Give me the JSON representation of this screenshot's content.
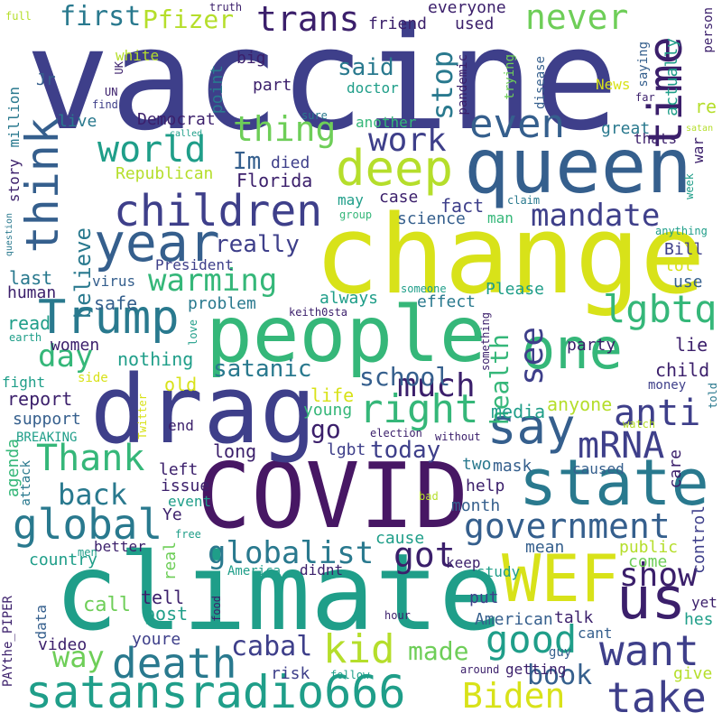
{
  "colors": {
    "background": "#ffffff",
    "purple": "#3b1f6b",
    "dark_purple": "#471764",
    "indigo": "#3e3f8a",
    "blue": "#355f8d",
    "teal": "#29798e",
    "green_teal": "#1f9e89",
    "green": "#35b779",
    "light_green": "#6ece58",
    "lime": "#b5de2b",
    "yellow": "#d8e219"
  },
  "words": [
    {
      "text": "vaccine",
      "color": "indigo"
    },
    {
      "text": "change",
      "color": "yellow"
    },
    {
      "text": "queen",
      "color": "blue"
    },
    {
      "text": "climate",
      "color": "green_teal"
    },
    {
      "text": "COVID",
      "color": "dark_purple"
    },
    {
      "text": "drag",
      "color": "indigo"
    },
    {
      "text": "people",
      "color": "green"
    },
    {
      "text": "satansradio666",
      "color": "green_teal"
    },
    {
      "text": "state",
      "color": "teal"
    },
    {
      "text": "WEF",
      "color": "yellow"
    },
    {
      "text": "us",
      "color": "purple"
    },
    {
      "text": "one",
      "color": "green"
    },
    {
      "text": "year",
      "color": "blue"
    },
    {
      "text": "deep",
      "color": "lime"
    },
    {
      "text": "children",
      "color": "indigo"
    },
    {
      "text": "think",
      "color": "blue"
    },
    {
      "text": "time",
      "color": "purple"
    },
    {
      "text": "Trump",
      "color": "teal"
    },
    {
      "text": "say",
      "color": "blue"
    },
    {
      "text": "want",
      "color": "indigo"
    },
    {
      "text": "take",
      "color": "indigo"
    },
    {
      "text": "death",
      "color": "teal"
    },
    {
      "text": "government",
      "color": "blue"
    },
    {
      "text": "global",
      "color": "teal"
    },
    {
      "text": "even",
      "color": "blue"
    },
    {
      "text": "world",
      "color": "green_teal"
    },
    {
      "text": "Thank",
      "color": "green"
    },
    {
      "text": "right",
      "color": "green"
    },
    {
      "text": "good",
      "color": "green_teal"
    },
    {
      "text": "mRNA",
      "color": "indigo"
    },
    {
      "text": "show",
      "color": "purple"
    },
    {
      "text": "kid",
      "color": "lime"
    },
    {
      "text": "Biden",
      "color": "yellow"
    },
    {
      "text": "anti",
      "color": "indigo"
    },
    {
      "text": "mandate",
      "color": "indigo"
    },
    {
      "text": "lgbtq",
      "color": "green"
    },
    {
      "text": "trans",
      "color": "purple"
    },
    {
      "text": "never",
      "color": "light_green"
    },
    {
      "text": "thing",
      "color": "light_green"
    },
    {
      "text": "warming",
      "color": "green"
    },
    {
      "text": "work",
      "color": "indigo"
    },
    {
      "text": "see",
      "color": "indigo"
    },
    {
      "text": "much",
      "color": "purple"
    },
    {
      "text": "globalist",
      "color": "teal"
    },
    {
      "text": "got",
      "color": "purple"
    },
    {
      "text": "back",
      "color": "teal"
    },
    {
      "text": "day",
      "color": "green"
    },
    {
      "text": "satanic",
      "color": "teal"
    },
    {
      "text": "school",
      "color": "blue"
    },
    {
      "text": "health",
      "color": "green"
    },
    {
      "text": "stop",
      "color": "teal"
    },
    {
      "text": "really",
      "color": "indigo"
    },
    {
      "text": "book",
      "color": "blue"
    },
    {
      "text": "cabal",
      "color": "indigo"
    },
    {
      "text": "way",
      "color": "light_green"
    },
    {
      "text": "made",
      "color": "light_green"
    },
    {
      "text": "today",
      "color": "indigo"
    },
    {
      "text": "first",
      "color": "teal"
    },
    {
      "text": "Pfizer",
      "color": "lime"
    },
    {
      "text": "believe",
      "color": "teal"
    },
    {
      "text": "said",
      "color": "teal"
    },
    {
      "text": "go",
      "color": "purple"
    },
    {
      "text": "Im",
      "color": "blue"
    },
    {
      "text": "Florida",
      "color": "purple"
    },
    {
      "text": "died",
      "color": "indigo"
    },
    {
      "text": "Republican",
      "color": "lime"
    },
    {
      "text": "Democrat",
      "color": "purple"
    },
    {
      "text": "everyone",
      "color": "purple"
    },
    {
      "text": "friend",
      "color": "purple"
    },
    {
      "text": "used",
      "color": "purple"
    },
    {
      "text": "fact",
      "color": "indigo"
    },
    {
      "text": "case",
      "color": "purple"
    },
    {
      "text": "science",
      "color": "blue"
    },
    {
      "text": "man",
      "color": "green"
    },
    {
      "text": "Bill",
      "color": "indigo"
    },
    {
      "text": "lot",
      "color": "yellow"
    },
    {
      "text": "use",
      "color": "blue"
    },
    {
      "text": "President",
      "color": "indigo"
    },
    {
      "text": "virus",
      "color": "blue"
    },
    {
      "text": "last",
      "color": "teal"
    },
    {
      "text": "human",
      "color": "purple"
    },
    {
      "text": "safe",
      "color": "blue"
    },
    {
      "text": "problem",
      "color": "teal"
    },
    {
      "text": "always",
      "color": "green_teal"
    },
    {
      "text": "effect",
      "color": "teal"
    },
    {
      "text": "Please",
      "color": "green_teal"
    },
    {
      "text": "party",
      "color": "purple"
    },
    {
      "text": "read",
      "color": "green_teal"
    },
    {
      "text": "women",
      "color": "purple"
    },
    {
      "text": "nothing",
      "color": "green_teal"
    },
    {
      "text": "lie",
      "color": "purple"
    },
    {
      "text": "child",
      "color": "purple"
    },
    {
      "text": "report",
      "color": "purple"
    },
    {
      "text": "old",
      "color": "yellow"
    },
    {
      "text": "life",
      "color": "yellow"
    },
    {
      "text": "young",
      "color": "green"
    },
    {
      "text": "anyone",
      "color": "lime"
    },
    {
      "text": "media",
      "color": "green_teal"
    },
    {
      "text": "support",
      "color": "blue"
    },
    {
      "text": "agenda",
      "color": "green"
    },
    {
      "text": "long",
      "color": "purple"
    },
    {
      "text": "lgbt",
      "color": "indigo"
    },
    {
      "text": "end",
      "color": "purple"
    },
    {
      "text": "left",
      "color": "purple"
    },
    {
      "text": "issue",
      "color": "purple"
    },
    {
      "text": "event",
      "color": "green_teal"
    },
    {
      "text": "Ye",
      "color": "purple"
    },
    {
      "text": "two",
      "color": "teal"
    },
    {
      "text": "mask",
      "color": "blue"
    },
    {
      "text": "help",
      "color": "purple"
    },
    {
      "text": "caused",
      "color": "blue"
    },
    {
      "text": "care",
      "color": "purple"
    },
    {
      "text": "month",
      "color": "blue"
    },
    {
      "text": "cause",
      "color": "green_teal"
    },
    {
      "text": "keep",
      "color": "purple"
    },
    {
      "text": "mean",
      "color": "blue"
    },
    {
      "text": "public",
      "color": "lime"
    },
    {
      "text": "come",
      "color": "light_green"
    },
    {
      "text": "control",
      "color": "indigo"
    },
    {
      "text": "country",
      "color": "green_teal"
    },
    {
      "text": "better",
      "color": "purple"
    },
    {
      "text": "America",
      "color": "green_teal"
    },
    {
      "text": "didnt",
      "color": "purple"
    },
    {
      "text": "study",
      "color": "green_teal"
    },
    {
      "text": "data",
      "color": "blue"
    },
    {
      "text": "call",
      "color": "light_green"
    },
    {
      "text": "tell",
      "color": "purple"
    },
    {
      "text": "post",
      "color": "green_teal"
    },
    {
      "text": "real",
      "color": "light_green"
    },
    {
      "text": "put",
      "color": "indigo"
    },
    {
      "text": "talk",
      "color": "purple"
    },
    {
      "text": "American",
      "color": "blue"
    },
    {
      "text": "video",
      "color": "purple"
    },
    {
      "text": "youre",
      "color": "indigo"
    },
    {
      "text": "risk",
      "color": "indigo"
    },
    {
      "text": "getting",
      "color": "purple"
    },
    {
      "text": "give",
      "color": "lime"
    },
    {
      "text": "hes",
      "color": "green_teal"
    },
    {
      "text": "yet",
      "color": "purple"
    },
    {
      "text": "cant",
      "color": "blue"
    },
    {
      "text": "guy",
      "color": "blue"
    },
    {
      "text": "around",
      "color": "purple"
    },
    {
      "text": "follow",
      "color": "green_teal"
    },
    {
      "text": "hour",
      "color": "purple"
    },
    {
      "text": "food",
      "color": "purple"
    },
    {
      "text": "men",
      "color": "green_teal"
    },
    {
      "text": "free",
      "color": "green_teal"
    },
    {
      "text": "bad",
      "color": "lime"
    },
    {
      "text": "attack",
      "color": "teal"
    },
    {
      "text": "BREAKING",
      "color": "green_teal"
    },
    {
      "text": "fight",
      "color": "green_teal"
    },
    {
      "text": "side",
      "color": "yellow"
    },
    {
      "text": "Twitter",
      "color": "yellow"
    },
    {
      "text": "election",
      "color": "purple"
    },
    {
      "text": "without",
      "color": "purple"
    },
    {
      "text": "watch",
      "color": "lime"
    },
    {
      "text": "money",
      "color": "indigo"
    },
    {
      "text": "told",
      "color": "teal"
    },
    {
      "text": "earth",
      "color": "green_teal"
    },
    {
      "text": "love",
      "color": "green_teal"
    },
    {
      "text": "something",
      "color": "purple"
    },
    {
      "text": "someone",
      "color": "green_teal"
    },
    {
      "text": "keith0sta",
      "color": "purple"
    },
    {
      "text": "anything",
      "color": "green_teal"
    },
    {
      "text": "group",
      "color": "green"
    },
    {
      "text": "claim",
      "color": "teal"
    },
    {
      "text": "week",
      "color": "green_teal"
    },
    {
      "text": "may",
      "color": "green_teal"
    },
    {
      "text": "thats",
      "color": "purple"
    },
    {
      "text": "great",
      "color": "teal"
    },
    {
      "text": "war",
      "color": "purple"
    },
    {
      "text": "satan",
      "color": "lime"
    },
    {
      "text": "called",
      "color": "green_teal"
    },
    {
      "text": "sure",
      "color": "teal"
    },
    {
      "text": "another",
      "color": "green"
    },
    {
      "text": "News",
      "color": "yellow"
    },
    {
      "text": "far",
      "color": "purple"
    },
    {
      "text": "re",
      "color": "lime"
    },
    {
      "text": "actually",
      "color": "green_teal"
    },
    {
      "text": "saying",
      "color": "blue"
    },
    {
      "text": "trying",
      "color": "light_green"
    },
    {
      "text": "disease",
      "color": "blue"
    },
    {
      "text": "pandemic",
      "color": "purple"
    },
    {
      "text": "doctor",
      "color": "green_teal"
    },
    {
      "text": "big",
      "color": "purple"
    },
    {
      "text": "part",
      "color": "purple"
    },
    {
      "text": "point",
      "color": "teal"
    },
    {
      "text": "white",
      "color": "lime"
    },
    {
      "text": "Jr",
      "color": "blue"
    },
    {
      "text": "UK",
      "color": "purple"
    },
    {
      "text": "UN",
      "color": "purple"
    },
    {
      "text": "find",
      "color": "indigo"
    },
    {
      "text": "live",
      "color": "teal"
    },
    {
      "text": "million",
      "color": "teal"
    },
    {
      "text": "story",
      "color": "purple"
    },
    {
      "text": "question",
      "color": "teal"
    },
    {
      "text": "full",
      "color": "lime"
    },
    {
      "text": "truth",
      "color": "purple"
    },
    {
      "text": "person",
      "color": "purple"
    },
    {
      "text": "PAYthe_PIPER",
      "color": "purple"
    }
  ]
}
